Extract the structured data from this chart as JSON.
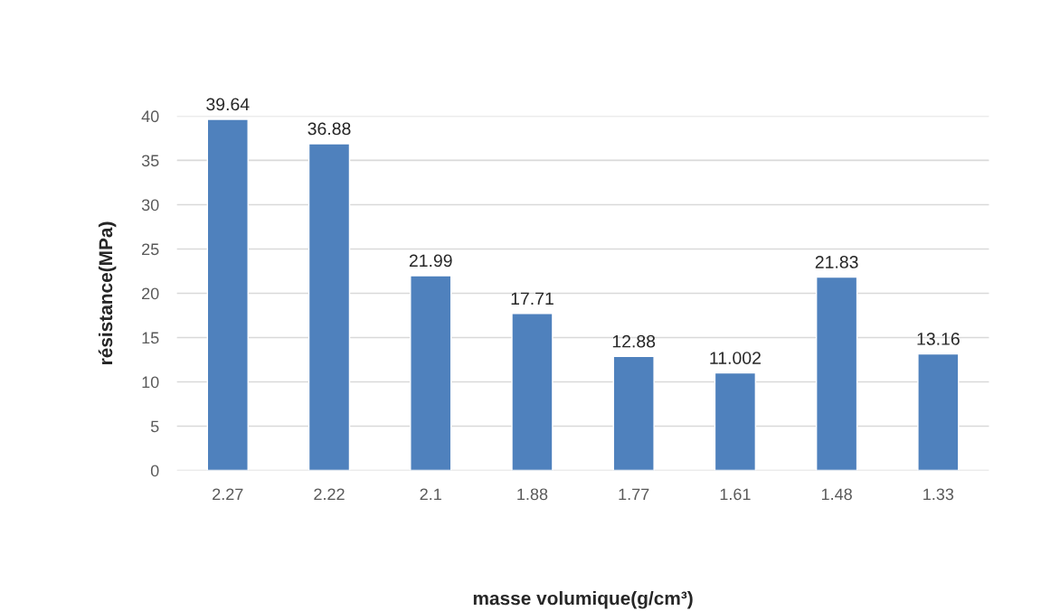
{
  "chart_data": {
    "type": "bar",
    "xlabel": "masse volumique(g/cm³)",
    "ylabel": "résistance(MPa)",
    "categories": [
      "2.27",
      "2.22",
      "2.1",
      "1.88",
      "1.77",
      "1.61",
      "1.48",
      "1.33"
    ],
    "values": [
      39.64,
      36.88,
      21.99,
      17.71,
      12.88,
      11.002,
      21.83,
      13.16
    ],
    "color": "#4f81bd",
    "ylim": [
      0,
      40
    ],
    "yticks": [
      0,
      5,
      10,
      15,
      20,
      25,
      30,
      35,
      40
    ],
    "grid": "y",
    "data_labels": true
  }
}
